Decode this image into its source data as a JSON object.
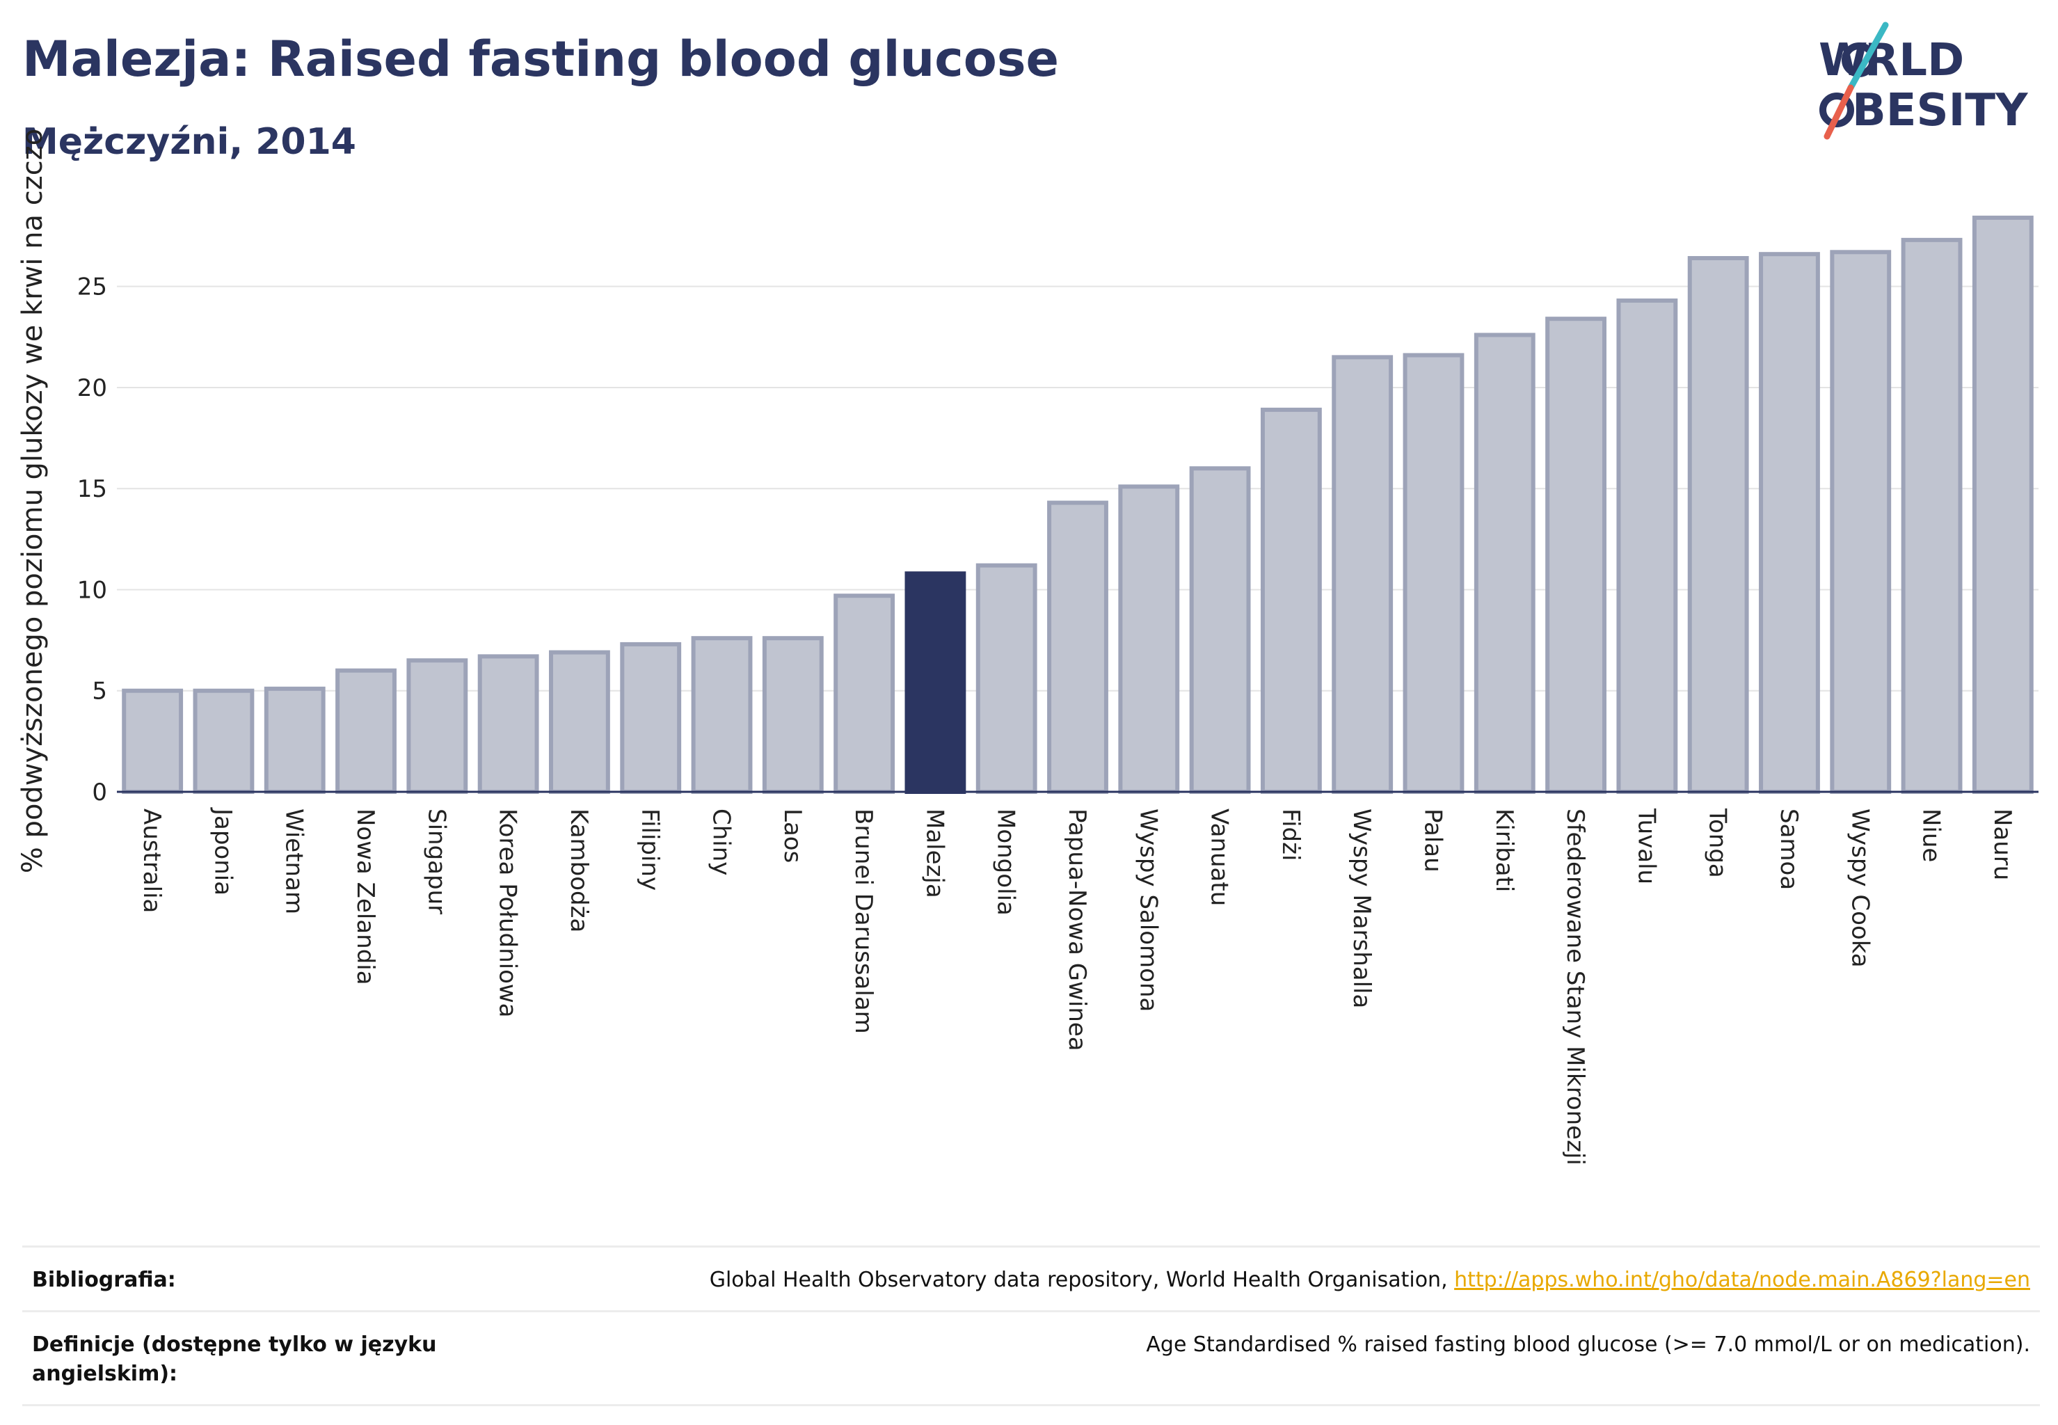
{
  "header": {
    "title": "Malezja: Raised fasting blood glucose",
    "subtitle": "Mężczyźni, 2014"
  },
  "logo": {
    "line1": "WORLD",
    "line2": "OBESITY",
    "slash_colors": [
      "#3bb8c4",
      "#e8604c"
    ]
  },
  "colors": {
    "bar": "#c0c4d0",
    "bar_stroke": "#9da3b8",
    "highlight": "#2b3561",
    "axis": "#2b3561",
    "grid": "#e4e4e4"
  },
  "chart_data": {
    "type": "bar",
    "ylabel": "% podwyższonego poziomu glukozy we krwi na czczo",
    "xlabel": "",
    "ylim": [
      0,
      28.5
    ],
    "yticks": [
      0,
      5,
      10,
      15,
      20,
      25
    ],
    "grid": true,
    "highlight": "Malezja",
    "categories": [
      "Australia",
      "Japonia",
      "Wietnam",
      "Nowa Zelandia",
      "Singapur",
      "Korea Południowa",
      "Kambodża",
      "Filipiny",
      "Chiny",
      "Laos",
      "Brunei Darussalam",
      "Malezja",
      "Mongolia",
      "Papua-Nowa Gwinea",
      "Wyspy Salomona",
      "Vanuatu",
      "Fidżi",
      "Wyspy Marshalla",
      "Palau",
      "Kiribati",
      "Sfederowane Stany Mikronezji",
      "Tuvalu",
      "Tonga",
      "Samoa",
      "Wyspy Cooka",
      "Niue",
      "Nauru"
    ],
    "values": [
      5.0,
      5.0,
      5.1,
      6.0,
      6.5,
      6.7,
      6.9,
      7.3,
      7.6,
      7.6,
      9.7,
      10.8,
      11.2,
      14.3,
      15.1,
      16.0,
      18.9,
      21.5,
      21.6,
      22.6,
      23.4,
      24.3,
      26.4,
      26.6,
      26.7,
      27.3,
      28.4
    ]
  },
  "footer": {
    "bibliography_label": "Bibliografia:",
    "bibliography_text": "Global Health Observatory data repository, World Health Organisation, ",
    "bibliography_link": "http://apps.who.int/gho/data/node.main.A869?lang=en",
    "definitions_label": "Definicje (dostępne tylko w języku angielskim):",
    "definitions_text": "Age Standardised % raised fasting blood glucose (>= 7.0 mmol/L or on medication)."
  }
}
